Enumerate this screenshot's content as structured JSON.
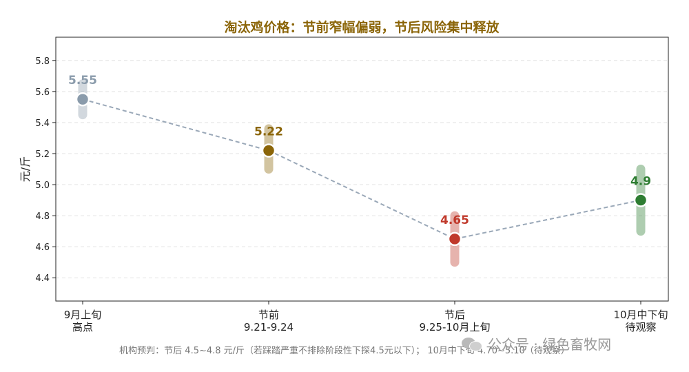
{
  "chart_data": {
    "type": "line",
    "title": "淘汰鸡价格：节前窄幅偏弱，节后风险集中释放",
    "ylabel": "元/斤",
    "xlabel": "",
    "ylim": [
      4.25,
      5.95
    ],
    "yticks": [
      4.4,
      4.6,
      4.8,
      5.0,
      5.2,
      5.4,
      5.6,
      5.8
    ],
    "grid": true,
    "categories": [
      {
        "line1": "9月上旬",
        "line2": "高点"
      },
      {
        "line1": "节前",
        "line2": "9.21-9.24"
      },
      {
        "line1": "节后",
        "line2": "9.25-10月上旬"
      },
      {
        "line1": "10月中下旬",
        "line2": "待观察"
      }
    ],
    "points": [
      {
        "value": 5.55,
        "label": "5.55",
        "low": 5.45,
        "high": 5.65,
        "color": "#8a9bab"
      },
      {
        "value": 5.22,
        "label": "5.22",
        "low": 5.1,
        "high": 5.36,
        "color": "#8b6508"
      },
      {
        "value": 4.65,
        "label": "4.65",
        "low": 4.5,
        "high": 4.8,
        "color": "#c0392b"
      },
      {
        "value": 4.9,
        "label": "4.9",
        "low": 4.7,
        "high": 5.1,
        "color": "#2e7d32"
      }
    ],
    "line_color": "#9aa8b8",
    "title_color": "#8b6508"
  },
  "footnote": "机构预判：节后 4.5~4.8 元/斤（若踩踏严重不排除阶段性下探4.5元以下）； 10月中下旬 4.70~5.10（待观察）",
  "watermark": "公众号 · 绿色畜牧网"
}
